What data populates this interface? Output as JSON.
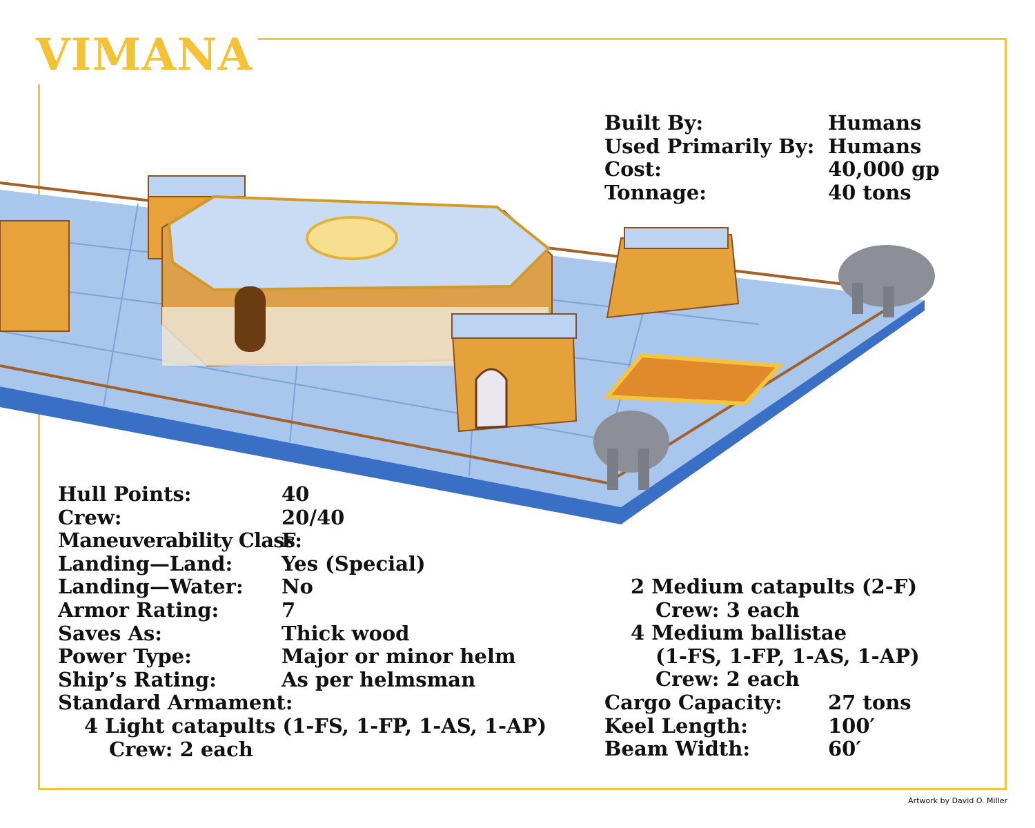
{
  "title": "VIMANA",
  "top_stats": [
    {
      "label": "Built By:",
      "value": "Humans"
    },
    {
      "label": "Used Primarily By:",
      "value": "Humans"
    },
    {
      "label": "Cost:",
      "value": "40,000 gp"
    },
    {
      "label": "Tonnage:",
      "value": "40 tons"
    }
  ],
  "left_stats": [
    {
      "label": "Hull Points:",
      "value": "40"
    },
    {
      "label": "Crew:",
      "value": "20/40"
    },
    {
      "label": "Maneuverability Class:",
      "value": "F"
    },
    {
      "label": "Landing—Land:",
      "value": "Yes (Special)"
    },
    {
      "label": "Landing—Water:",
      "value": "No"
    },
    {
      "label": "Armor Rating:",
      "value": "7"
    },
    {
      "label": "Saves As:",
      "value": "Thick wood"
    },
    {
      "label": "Power Type:",
      "value": "Major or minor helm"
    },
    {
      "label": "Ship’s Rating:",
      "value": "As per helmsman"
    },
    {
      "label": "Standard Armament:",
      "value": ""
    }
  ],
  "left_armament": [
    {
      "text": "4 Light catapults (1-FS, 1-FP, 1-AS, 1-AP)",
      "indent": 1
    },
    {
      "text": "Crew: 2 each",
      "indent": 2
    }
  ],
  "right_armament": [
    {
      "text": "2 Medium catapults (2-F)",
      "indent": 1
    },
    {
      "text": "Crew: 3 each",
      "indent": 2
    },
    {
      "text": "4 Medium ballistae",
      "indent": 1
    },
    {
      "text": "(1-FS, 1-FP, 1-AS, 1-AP)",
      "indent": 2
    },
    {
      "text": "Crew: 2 each",
      "indent": 2
    }
  ],
  "right_stats": [
    {
      "label": "Cargo Capacity:",
      "value": "27 tons"
    },
    {
      "label": "Keel Length:",
      "value": "100′"
    },
    {
      "label": "Beam Width:",
      "value": "60′"
    }
  ],
  "credit": "Artwork by David O. Miller",
  "colors": {
    "border": "#f2c440",
    "title": "#f4c236",
    "deck": "#8fb4e0",
    "gold": "#e09a2c"
  }
}
